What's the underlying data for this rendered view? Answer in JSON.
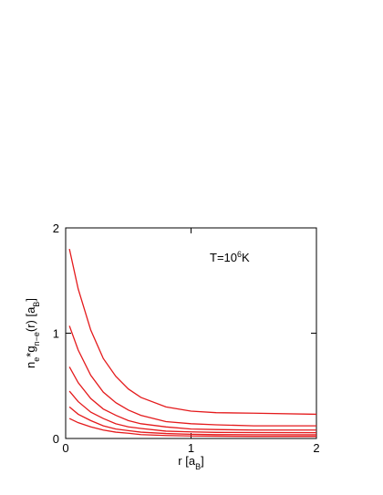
{
  "chart_data": {
    "type": "line",
    "annotation": [
      {
        "text": "T=10"
      },
      {
        "text": "6",
        "sup": true
      },
      {
        "text": "K"
      }
    ],
    "xlabel": [
      {
        "text": "r [a"
      },
      {
        "text": "B",
        "sub": true
      },
      {
        "text": "]"
      }
    ],
    "ylabel": [
      {
        "text": "n"
      },
      {
        "text": "e",
        "sub": true
      },
      {
        "text": "*g"
      },
      {
        "text": "n−e",
        "sub": true
      },
      {
        "text": "(r) [a"
      },
      {
        "text": "B",
        "sub": true
      },
      {
        "text": "]"
      }
    ],
    "x": [
      0.03,
      0.1,
      0.2,
      0.3,
      0.4,
      0.5,
      0.6,
      0.8,
      1.0,
      1.2,
      1.5,
      2.0
    ],
    "series": [
      {
        "color": "#e41a1c",
        "values": [
          1.8,
          1.42,
          1.03,
          0.76,
          0.59,
          0.47,
          0.39,
          0.3,
          0.26,
          0.245,
          0.24,
          0.23
        ]
      },
      {
        "color": "#e41a1c",
        "values": [
          1.07,
          0.84,
          0.6,
          0.44,
          0.34,
          0.27,
          0.22,
          0.16,
          0.14,
          0.13,
          0.12,
          0.12
        ]
      },
      {
        "color": "#e41a1c",
        "values": [
          0.68,
          0.53,
          0.38,
          0.28,
          0.22,
          0.17,
          0.14,
          0.11,
          0.09,
          0.085,
          0.08,
          0.08
        ]
      },
      {
        "color": "#e41a1c",
        "values": [
          0.45,
          0.35,
          0.25,
          0.19,
          0.14,
          0.11,
          0.095,
          0.07,
          0.063,
          0.058,
          0.056,
          0.055
        ]
      },
      {
        "color": "#e41a1c",
        "values": [
          0.3,
          0.23,
          0.17,
          0.12,
          0.09,
          0.075,
          0.06,
          0.047,
          0.04,
          0.037,
          0.036,
          0.035
        ]
      },
      {
        "color": "#e41a1c",
        "values": [
          0.19,
          0.15,
          0.11,
          0.08,
          0.06,
          0.05,
          0.037,
          0.028,
          0.024,
          0.022,
          0.02,
          0.02
        ]
      }
    ],
    "xlim": [
      0,
      2
    ],
    "ylim": [
      0,
      2
    ],
    "xticks": [
      0,
      1,
      2
    ],
    "yticks": [
      0,
      1,
      2
    ]
  }
}
